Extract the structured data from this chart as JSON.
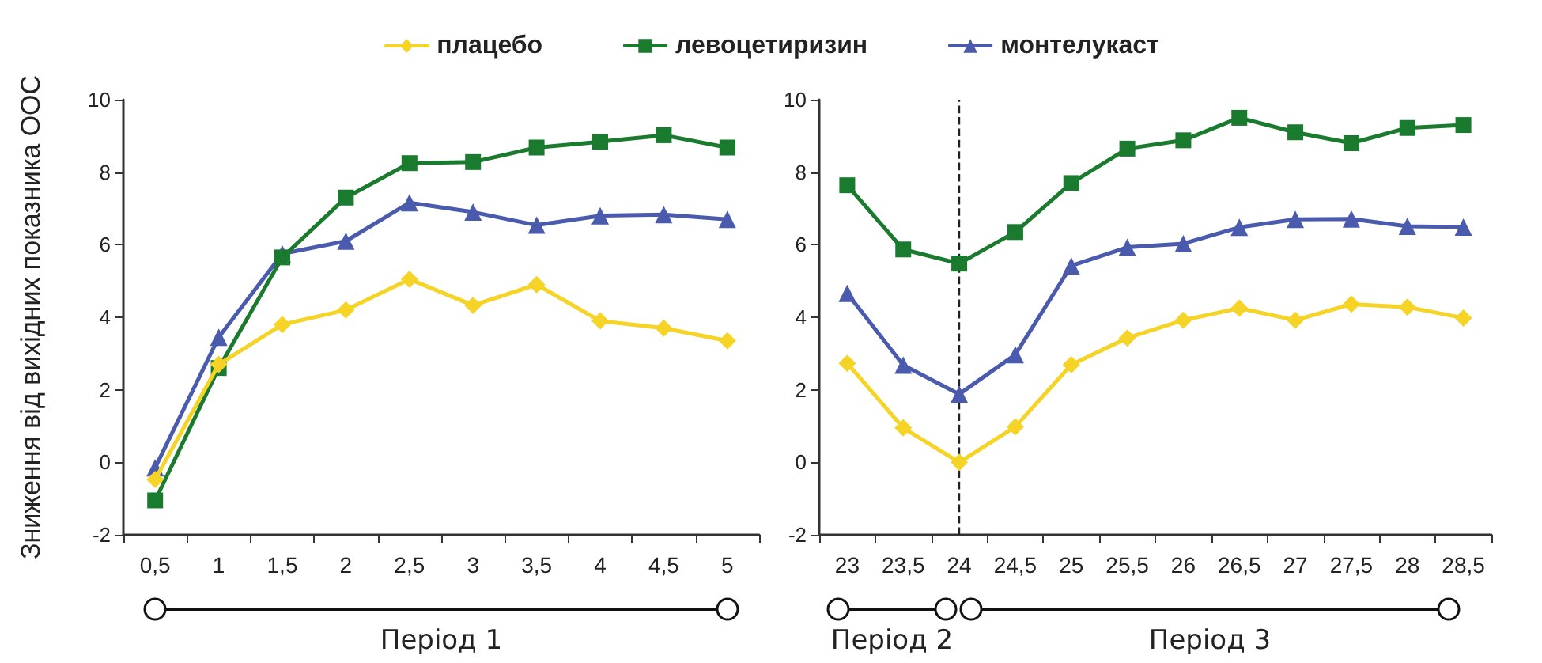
{
  "chart_data": [
    {
      "type": "line",
      "ylabel": "Зниження від вихідних показника ООС",
      "categories": [
        "0,5",
        "1",
        "1,5",
        "2",
        "2,5",
        "3",
        "3,5",
        "4",
        "4,5",
        "5"
      ],
      "ylim": [
        -2,
        10
      ],
      "yticks": [
        -2,
        0,
        2,
        4,
        6,
        8,
        10
      ],
      "grid": false,
      "legend": "top",
      "line_style": "solid",
      "annotations": [
        "Період 1"
      ],
      "series": [
        {
          "name": "плацебо",
          "color": "#f5d327",
          "marker": "diamond",
          "values": [
            -0.47,
            2.7,
            3.8,
            4.2,
            5.05,
            4.33,
            4.9,
            3.9,
            3.7,
            3.35
          ]
        },
        {
          "name": "левоцетиризин",
          "color": "#1a7a2e",
          "marker": "square",
          "values": [
            -1.05,
            2.6,
            5.65,
            7.3,
            8.25,
            8.28,
            8.68,
            8.84,
            9.02,
            8.68
          ]
        },
        {
          "name": "монтелукаст",
          "color": "#4a5aad",
          "marker": "triangle",
          "values": [
            -0.15,
            3.45,
            5.75,
            6.1,
            7.16,
            6.9,
            6.54,
            6.8,
            6.83,
            6.7
          ]
        }
      ]
    },
    {
      "type": "line",
      "categories": [
        "23",
        "23,5",
        "24",
        "24,5",
        "25",
        "25,5",
        "26",
        "26,5",
        "27",
        "27,5",
        "28",
        "28,5"
      ],
      "ylim": [
        -2,
        10
      ],
      "yticks": [
        -2,
        0,
        2,
        4,
        6,
        8,
        10
      ],
      "grid": false,
      "legend": false,
      "line_style": "solid",
      "annotations": [
        "Період 2",
        "Період 3"
      ],
      "ref_lines": [
        {
          "axis": "x",
          "value": "24",
          "line_style": "dashed",
          "color": "#222222"
        }
      ],
      "series": [
        {
          "color": "#f5d327",
          "marker": "diamond",
          "values": [
            2.73,
            0.95,
            0,
            0.98,
            2.69,
            3.43,
            3.92,
            4.25,
            3.92,
            4.36,
            4.28,
            3.98
          ]
        },
        {
          "color": "#1a7a2e",
          "marker": "square",
          "values": [
            7.64,
            5.87,
            5.48,
            6.35,
            7.7,
            8.65,
            8.88,
            9.5,
            9.1,
            8.8,
            9.22,
            9.3
          ]
        },
        {
          "color": "#4a5aad",
          "marker": "triangle",
          "values": [
            4.66,
            2.68,
            1.88,
            2.97,
            5.42,
            5.93,
            6.03,
            6.48,
            6.7,
            6.71,
            6.51,
            6.49
          ]
        }
      ]
    }
  ]
}
